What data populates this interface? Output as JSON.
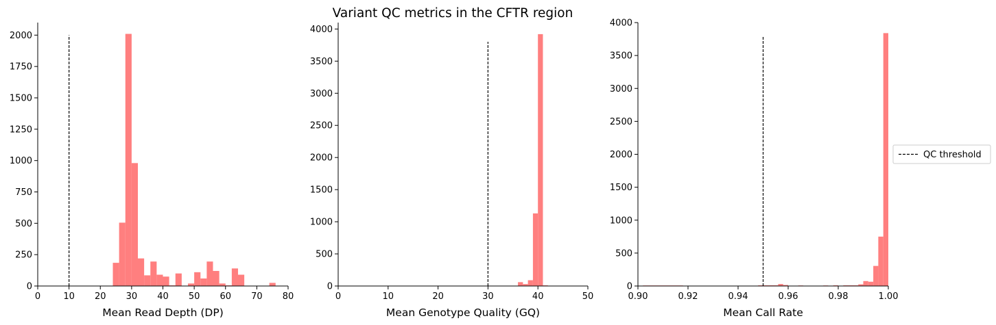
{
  "title": "Variant QC metrics in the CFTR region",
  "colors": {
    "bar": "#ff7f7f",
    "threshold": "#000000",
    "axis": "#000000"
  },
  "legend": {
    "label": "QC threshold",
    "placement": "center-right outside"
  },
  "chart_data": [
    {
      "type": "bar",
      "xlabel": "Mean Read Depth (DP)",
      "ylabel": "",
      "xlim": [
        0,
        80
      ],
      "ylim": [
        0,
        2100
      ],
      "xticks": [
        0,
        10,
        20,
        30,
        40,
        50,
        60,
        70,
        80
      ],
      "yticks": [
        0,
        250,
        500,
        750,
        1000,
        1250,
        1500,
        1750,
        2000
      ],
      "threshold": {
        "x": 10,
        "ymax": 2000
      },
      "bins": [
        {
          "x0": 24,
          "x1": 26,
          "count": 185
        },
        {
          "x0": 26,
          "x1": 28,
          "count": 505
        },
        {
          "x0": 28,
          "x1": 30,
          "count": 2010
        },
        {
          "x0": 30,
          "x1": 32,
          "count": 980
        },
        {
          "x0": 32,
          "x1": 34,
          "count": 220
        },
        {
          "x0": 34,
          "x1": 36,
          "count": 85
        },
        {
          "x0": 36,
          "x1": 38,
          "count": 195
        },
        {
          "x0": 38,
          "x1": 40,
          "count": 90
        },
        {
          "x0": 40,
          "x1": 42,
          "count": 75
        },
        {
          "x0": 42,
          "x1": 44,
          "count": 5
        },
        {
          "x0": 44,
          "x1": 46,
          "count": 100
        },
        {
          "x0": 48,
          "x1": 50,
          "count": 20
        },
        {
          "x0": 50,
          "x1": 52,
          "count": 110
        },
        {
          "x0": 52,
          "x1": 54,
          "count": 60
        },
        {
          "x0": 54,
          "x1": 56,
          "count": 195
        },
        {
          "x0": 56,
          "x1": 58,
          "count": 120
        },
        {
          "x0": 58,
          "x1": 60,
          "count": 20
        },
        {
          "x0": 60,
          "x1": 62,
          "count": 5
        },
        {
          "x0": 62,
          "x1": 64,
          "count": 140
        },
        {
          "x0": 64,
          "x1": 66,
          "count": 90
        },
        {
          "x0": 74,
          "x1": 76,
          "count": 25
        }
      ]
    },
    {
      "type": "bar",
      "xlabel": "Mean Genotype Quality (GQ)",
      "ylabel": "",
      "xlim": [
        0,
        50
      ],
      "ylim": [
        0,
        4100
      ],
      "xticks": [
        0,
        10,
        20,
        30,
        40,
        50
      ],
      "yticks": [
        0,
        500,
        1000,
        1500,
        2000,
        2500,
        3000,
        3500,
        4000
      ],
      "threshold": {
        "x": 30,
        "ymax": 3800
      },
      "bins": [
        {
          "x0": 36,
          "x1": 37,
          "count": 60
        },
        {
          "x0": 37,
          "x1": 38,
          "count": 30
        },
        {
          "x0": 38,
          "x1": 39,
          "count": 90
        },
        {
          "x0": 39,
          "x1": 40,
          "count": 1130
        },
        {
          "x0": 40,
          "x1": 41,
          "count": 3920
        },
        {
          "x0": 41,
          "x1": 42,
          "count": 10
        }
      ]
    },
    {
      "type": "bar",
      "xlabel": "Mean Call Rate",
      "ylabel": "",
      "xlim": [
        0.9,
        1.0
      ],
      "ylim": [
        0,
        4000
      ],
      "xticks": [
        "0.90",
        "0.92",
        "0.94",
        "0.96",
        "0.98",
        "1.00"
      ],
      "yticks": [
        0,
        500,
        1000,
        1500,
        2000,
        2500,
        3000,
        3500,
        4000
      ],
      "threshold": {
        "x": 0.95,
        "ymax": 3800
      },
      "bins": [
        {
          "x0": 0.902,
          "x1": 0.918,
          "count": 8
        },
        {
          "x0": 0.948,
          "x1": 0.956,
          "count": 10
        },
        {
          "x0": 0.956,
          "x1": 0.958,
          "count": 30
        },
        {
          "x0": 0.958,
          "x1": 0.96,
          "count": 15
        },
        {
          "x0": 0.964,
          "x1": 0.966,
          "count": 8
        },
        {
          "x0": 0.974,
          "x1": 0.976,
          "count": 8
        },
        {
          "x0": 0.978,
          "x1": 0.98,
          "count": 10
        },
        {
          "x0": 0.982,
          "x1": 0.988,
          "count": 10
        },
        {
          "x0": 0.988,
          "x1": 0.99,
          "count": 25
        },
        {
          "x0": 0.99,
          "x1": 0.992,
          "count": 75
        },
        {
          "x0": 0.992,
          "x1": 0.994,
          "count": 65
        },
        {
          "x0": 0.994,
          "x1": 0.996,
          "count": 305
        },
        {
          "x0": 0.996,
          "x1": 0.998,
          "count": 750
        },
        {
          "x0": 0.998,
          "x1": 1.0,
          "count": 3840
        }
      ]
    }
  ]
}
